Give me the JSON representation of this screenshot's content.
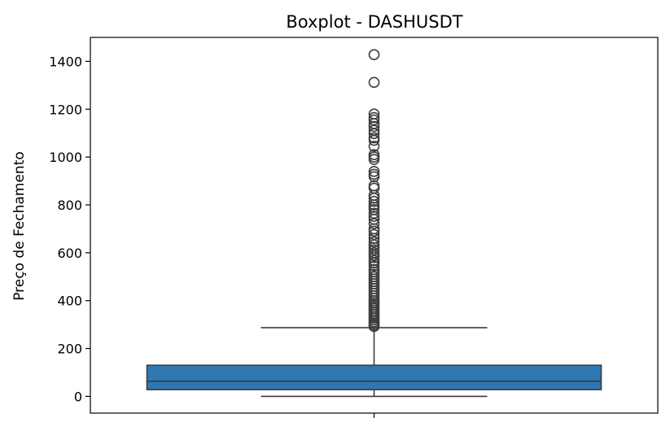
{
  "chart_data": {
    "type": "boxplot",
    "title": "Boxplot - DASHUSDT",
    "xlabel": "",
    "ylabel": "Preço de Fechamento",
    "ylim": [
      -70,
      1500
    ],
    "yticks": [
      0,
      200,
      400,
      600,
      800,
      1000,
      1200,
      1400
    ],
    "grid": false,
    "legend": "none",
    "box": {
      "whisker_low": 0,
      "q1": 28,
      "median": 63,
      "q3": 130,
      "whisker_high": 287
    },
    "outliers": [
      1428,
      1312,
      1180,
      1165,
      1155,
      1140,
      1128,
      1112,
      1098,
      1080,
      1070,
      1045,
      1010,
      1000,
      990,
      940,
      928,
      918,
      880,
      870,
      840,
      828,
      815,
      800,
      790,
      780,
      765,
      752,
      740,
      722,
      700,
      690,
      676,
      660,
      645,
      633,
      622,
      612,
      600,
      590,
      580,
      568,
      558,
      545,
      530,
      520,
      510,
      500,
      490,
      480,
      470,
      460,
      450,
      440,
      430,
      420,
      410,
      400,
      392,
      384,
      376,
      368,
      360,
      352,
      344,
      336,
      328,
      320,
      312,
      305,
      298,
      292
    ],
    "colors": {
      "box_fill": "#2f77b3",
      "line": "#3d3d3d",
      "axes": "#000000"
    }
  }
}
